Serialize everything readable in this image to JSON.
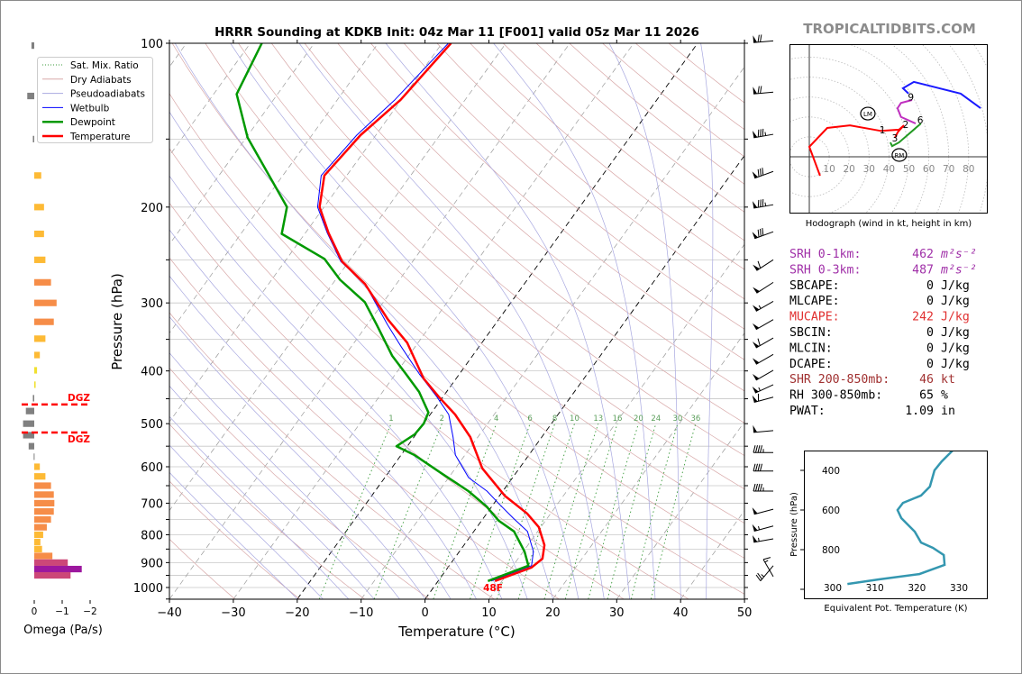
{
  "title": "HRRR Sounding at KDKB Init: 04z Mar 11 [F001] valid 05z Mar 11 2026",
  "watermark": "TROPICALTIDBITS.COM",
  "colors": {
    "temperature": "#ff0000",
    "dewpoint": "#009900",
    "wetbulb": "#0000ff",
    "dry_adiabat": "#d8a8a8",
    "pseudoadiabat": "#a8a8e0",
    "mixing_ratio": "#3a9a3a",
    "isotherm": "#9a9a9a",
    "theta_e": "#3497b0"
  },
  "legend": [
    {
      "label": "Sat. Mix. Ratio",
      "style": "dotted-green"
    },
    {
      "label": "Dry Adiabats",
      "style": "pink"
    },
    {
      "label": "Pseudoadiabats",
      "style": "lavender"
    },
    {
      "label": "Wetbulb",
      "style": "blue"
    },
    {
      "label": "Dewpoint",
      "style": "green-thick"
    },
    {
      "label": "Temperature",
      "style": "red-thick"
    }
  ],
  "chart_data": [
    {
      "type": "line",
      "name": "skewt",
      "xlabel": "Temperature (°C)",
      "ylabel": "Pressure (hPa)",
      "xlim": [
        -40,
        50
      ],
      "ylim": [
        1050,
        100
      ],
      "y_scale": "log",
      "skewed": true,
      "grid": true,
      "xticks": [
        "−40",
        "−30",
        "−20",
        "−10",
        "0",
        "10",
        "20",
        "30",
        "40",
        "50"
      ],
      "yticks": [
        "100",
        "200",
        "300",
        "400",
        "500",
        "600",
        "700",
        "800",
        "900",
        "1000"
      ],
      "highlighted_isotherms_c": [
        -20,
        0
      ],
      "mixing_ratio_labels": [
        "1",
        "2",
        "4",
        "6",
        "8",
        "10",
        "13",
        "16",
        "20",
        "24",
        "30",
        "36"
      ],
      "surface_temp_label": "48F",
      "temperature": {
        "p": [
          973,
          919,
          885,
          836,
          775,
          731,
          678,
          604,
          529,
          481,
          446,
          413,
          355,
          322,
          277,
          252,
          223,
          200,
          175,
          147.5,
          127,
          100
        ],
        "t": [
          8.9,
          13.1,
          13.8,
          12.6,
          9.7,
          6.3,
          0.8,
          -5.8,
          -11.2,
          -16.1,
          -20.7,
          -25.1,
          -31.7,
          -37.3,
          -44.9,
          -51,
          -56.4,
          -60.7,
          -63.5,
          -62.4,
          -60.1,
          -58.6
        ]
      },
      "dewpoint": {
        "p": [
          973,
          912,
          859,
          789,
          754,
          710,
          665,
          617,
          571,
          550,
          523,
          500,
          477,
          437,
          405,
          375,
          329,
          299,
          272,
          249,
          224,
          200,
          149,
          124,
          100
        ],
        "t": [
          7.8,
          12.4,
          10.2,
          6.3,
          2.7,
          -0.8,
          -5.4,
          -11.6,
          -17.9,
          -21.7,
          -20.2,
          -20,
          -20.5,
          -24.3,
          -28.4,
          -32.6,
          -38.5,
          -42.9,
          -49.3,
          -54.1,
          -63.6,
          -65.8,
          -79.8,
          -86.4,
          -88.2
        ]
      },
      "wetbulb": {
        "p": [
          973,
          912,
          859,
          789,
          746,
          705,
          665,
          628,
          571,
          529,
          481,
          446,
          405,
          361,
          329,
          277,
          252,
          223,
          200,
          175,
          147.5,
          127,
          100
        ],
        "t": [
          8.3,
          12.9,
          11.6,
          8.4,
          4.7,
          1.1,
          -2.5,
          -6.9,
          -11.5,
          -13.9,
          -17.1,
          -21,
          -26.3,
          -32.2,
          -36.8,
          -44.9,
          -51.2,
          -56.6,
          -61,
          -64,
          -63,
          -61,
          -59
        ]
      },
      "wind_barbs": [
        {
          "p": 99,
          "dir_deg": 265,
          "speed_kt": 70
        },
        {
          "p": 123,
          "dir_deg": 265,
          "speed_kt": 70
        },
        {
          "p": 147,
          "dir_deg": 260,
          "speed_kt": 85
        },
        {
          "p": 172,
          "dir_deg": 250,
          "speed_kt": 80
        },
        {
          "p": 198,
          "dir_deg": 260,
          "speed_kt": 85
        },
        {
          "p": 222,
          "dir_deg": 250,
          "speed_kt": 80
        },
        {
          "p": 250,
          "dir_deg": 237,
          "speed_kt": 60
        },
        {
          "p": 275,
          "dir_deg": 237,
          "speed_kt": 50
        },
        {
          "p": 298,
          "dir_deg": 240,
          "speed_kt": 55
        },
        {
          "p": 322,
          "dir_deg": 240,
          "speed_kt": 50
        },
        {
          "p": 348,
          "dir_deg": 240,
          "speed_kt": 60
        },
        {
          "p": 373,
          "dir_deg": 240,
          "speed_kt": 50
        },
        {
          "p": 399,
          "dir_deg": 240,
          "speed_kt": 50
        },
        {
          "p": 424,
          "dir_deg": 245,
          "speed_kt": 55
        },
        {
          "p": 447,
          "dir_deg": 255,
          "speed_kt": 60
        },
        {
          "p": 515,
          "dir_deg": 265,
          "speed_kt": 50
        },
        {
          "p": 565,
          "dir_deg": 270,
          "speed_kt": 45
        },
        {
          "p": 611,
          "dir_deg": 270,
          "speed_kt": 40
        },
        {
          "p": 665,
          "dir_deg": 270,
          "speed_kt": 45
        },
        {
          "p": 718,
          "dir_deg": 255,
          "speed_kt": 50
        },
        {
          "p": 771,
          "dir_deg": 255,
          "speed_kt": 55
        },
        {
          "p": 814,
          "dir_deg": 260,
          "speed_kt": 55
        },
        {
          "p": 912,
          "dir_deg": 220,
          "speed_kt": 25
        },
        {
          "p": 955,
          "dir_deg": 330,
          "speed_kt": 15
        }
      ]
    },
    {
      "type": "bar",
      "name": "omega",
      "xlabel": "Omega (Pa/s)",
      "xticks": [
        "0",
        "−1",
        "−2"
      ],
      "xlim": [
        0.5,
        -2.3
      ],
      "dgz_label": "DGZ",
      "dgz_pressures": [
        461,
        519
      ],
      "p": [
        101,
        125,
        150,
        175,
        200,
        224,
        250,
        275,
        300,
        325,
        349,
        374,
        399,
        424,
        449,
        474,
        500,
        525,
        550,
        575,
        600,
        625,
        650,
        675,
        700,
        725,
        750,
        775,
        800,
        825,
        850,
        875,
        900,
        925,
        950
      ],
      "values": [
        0.1,
        0.25,
        0.05,
        -0.25,
        -0.35,
        -0.35,
        -0.4,
        -0.6,
        -0.8,
        -0.7,
        -0.4,
        -0.2,
        -0.1,
        -0.05,
        0.05,
        0.3,
        0.4,
        0.4,
        0.2,
        0.02,
        -0.2,
        -0.4,
        -0.6,
        -0.7,
        -0.72,
        -0.7,
        -0.6,
        -0.45,
        -0.32,
        -0.22,
        -0.28,
        -0.65,
        -1.2,
        -1.7,
        -1.3
      ]
    },
    {
      "type": "line",
      "name": "hodograph",
      "xlabel": "Hodograph (wind in kt, height in km)",
      "ring_labels": [
        "10",
        "20",
        "30",
        "40",
        "50",
        "60",
        "70",
        "80"
      ],
      "segments": [
        {
          "color": "#ff0000",
          "u": [
            5.4,
            0,
            9,
            20.4,
            36,
            45,
            47.5
          ],
          "v": [
            -9.5,
            5,
            14.5,
            15.8,
            13,
            13.6,
            15.8
          ]
        },
        {
          "color": "#ff0000",
          "u": [
            47.5,
            44.5,
            43
          ],
          "v": [
            15.8,
            12.5,
            9.5
          ]
        },
        {
          "color": "#229922",
          "u": [
            56,
            45,
            41.6,
            40.7
          ],
          "v": [
            16.7,
            7.2,
            5.4,
            7.2
          ]
        },
        {
          "color": "#c030c0",
          "u": [
            53.4,
            46,
            44.3,
            46,
            51.6
          ],
          "v": [
            16.7,
            20,
            24.4,
            27,
            28.5
          ]
        },
        {
          "color": "#1a1aff",
          "u": [
            49.8,
            47,
            52.5,
            76,
            86
          ],
          "v": [
            31.7,
            34.4,
            37.6,
            31.7,
            24.4
          ]
        }
      ],
      "height_labels": [
        {
          "text": "1",
          "u": 36.7,
          "v": 13.6
        },
        {
          "text": "2",
          "u": 48.4,
          "v": 16.3
        },
        {
          "text": "3",
          "u": 43,
          "v": 9.5
        },
        {
          "text": "6",
          "u": 55.7,
          "v": 18.6
        },
        {
          "text": "9",
          "u": 51,
          "v": 30
        }
      ],
      "motion_markers": [
        {
          "text": "LM",
          "u": 29.4,
          "v": 21.7
        },
        {
          "text": "RM",
          "u": 45.2,
          "v": 0.9
        }
      ]
    },
    {
      "type": "line",
      "name": "theta-e",
      "xlabel": "Equivalent Pot. Temperature (K)",
      "ylabel": "Pressure (hPa)",
      "xticks": [
        "300",
        "310",
        "320",
        "330"
      ],
      "yticks": [
        "400",
        "600",
        "800"
      ],
      "xlim": [
        293,
        337
      ],
      "ylim": [
        1050,
        300
      ],
      "theta_e": [
        328.5,
        325.9,
        324.2,
        323.1,
        321,
        316.7,
        315.4,
        316.3,
        319.5,
        321,
        323.8,
        326.4,
        326.6,
        320.6,
        311,
        303.5
      ],
      "p": [
        300,
        355,
        400,
        482,
        527,
        564,
        600,
        641,
        709,
        764,
        791,
        827,
        877,
        923,
        950,
        973
      ]
    }
  ],
  "stats": [
    {
      "label": "SRH 0-1km:",
      "value": "462",
      "unit": "m²s⁻²",
      "color": "#a030a8"
    },
    {
      "label": "SRH 0-3km:",
      "value": "487",
      "unit": "m²s⁻²",
      "color": "#a030a8"
    },
    {
      "label": "SBCAPE:",
      "value": "0",
      "unit": "J/kg",
      "color": "#000000"
    },
    {
      "label": "MLCAPE:",
      "value": "0",
      "unit": "J/kg",
      "color": "#000000"
    },
    {
      "label": "MUCAPE:",
      "value": "242",
      "unit": "J/kg",
      "color": "#e03030"
    },
    {
      "label": "SBCIN:",
      "value": "0",
      "unit": "J/kg",
      "color": "#000000"
    },
    {
      "label": "MLCIN:",
      "value": "0",
      "unit": "J/kg",
      "color": "#000000"
    },
    {
      "label": "DCAPE:",
      "value": "0",
      "unit": "J/kg",
      "color": "#000000"
    },
    {
      "label": "SHR 200-850mb:",
      "value": "46",
      "unit": "kt",
      "color": "#a03030"
    },
    {
      "label": "RH 300-850mb:",
      "value": "65",
      "unit": "%",
      "color": "#000000"
    },
    {
      "label": "PWAT:",
      "value": "1.09",
      "unit": "in",
      "color": "#000000"
    }
  ]
}
